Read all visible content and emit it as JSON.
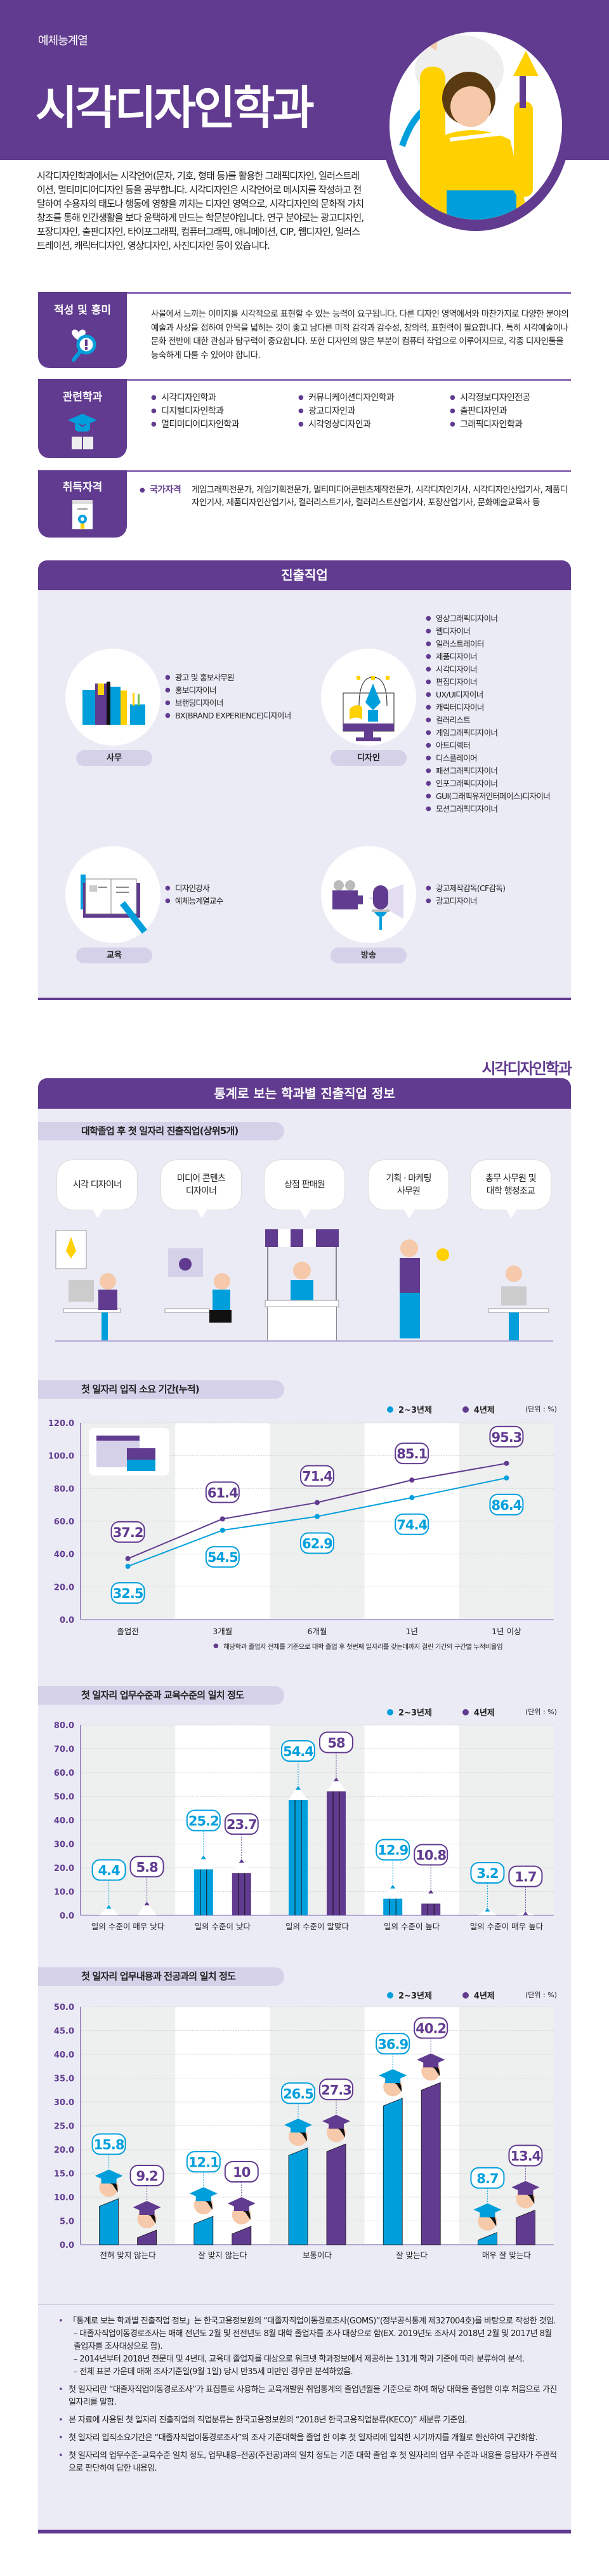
{
  "header": {
    "category": "예체능계열",
    "title": "시각디자인학과",
    "intro": "시각디자인학과에서는 시각언어(문자, 기호, 형태 등)를 활용한 그래픽디자인, 일러스트레이션, 멀티미디어디자인 등을 공부합니다. 시각디자인은 시각언어로 메시지를 작성하고 전달하여 수용자의 태도나 행동에 영향을 끼치는 디자인 영역으로, 시각디자인의 문화적 가치창조를 통해 인간생활을 보다 윤택하게 만드는 학문분야입니다. 연구 분야로는 광고디자인, 포장디자인, 출판디자인, 타이포그래픽, 컴퓨터그래픽, 애니메이션, CIP, 웹디자인, 일러스트레이션, 캐릭터디자인, 영상디자인, 사진디자인 등이 있습니다."
  },
  "aptitude": {
    "label": "적성 및 흥미",
    "icon": "heart-magnifier-icon",
    "text": "사물에서 느끼는 이미지를 시각적으로 표현할 수 있는 능력이 요구됩니다. 다른 디자인 영역에서와 마찬가지로 다양한 분야의 예술과 사상을 접하여 안목을 넓히는 것이 좋고 남다른 미적 감각과 감수성, 창의력, 표현력이 필요합니다. 특히 시각예술이나 문화 전반에 대한 관심과 탐구력이 중요합니다. 또한 디자인의 많은 부분이 컴퓨터 작업으로 이루어지므로, 각종 디자인툴을 능숙하게 다룰 수 있어야 합니다."
  },
  "related": {
    "label": "관련학과",
    "icon": "graduation-cap-book-icon",
    "columns": [
      [
        "시각디자인학과",
        "디지털디자인학과",
        "멀티미디어디자인학과"
      ],
      [
        "커뮤니케이션디자인학과",
        "광고디자인과",
        "시각영상디자인과"
      ],
      [
        "시각정보디자인전공",
        "출판디자인과",
        "그래픽디자인학과"
      ]
    ]
  },
  "certs": {
    "label": "취득자격",
    "icon": "certificate-icon",
    "type": "국가자격",
    "text": "게임그래픽전문가, 게임기획전문가, 멀티미디어콘텐츠제작전문가, 시각디자인기사, 시각디자인산업기사, 제품디자인기사, 제품디자인산업기사, 컬러리스트기사, 컬러리스트산업기사, 포장산업기사, 문화예술교육사 등"
  },
  "jobs": {
    "title": "진출직업",
    "groups": [
      {
        "label": "사무",
        "icon": "books-icon",
        "items": [
          "광고 및 홍보사무원",
          "홍보디자이너",
          "브랜딩디자이너",
          "BX(BRAND EXPERIENCE)디자이너"
        ]
      },
      {
        "label": "디자인",
        "icon": "pen-tool-monitor-icon",
        "items": [
          "영상그래픽디자이너",
          "웹디자이너",
          "일러스트레이터",
          "제품디자이너",
          "시각디자이너",
          "편집디자이너",
          "UX/UI디자이너",
          "캐릭터디자이너",
          "컬러리스트",
          "게임그래픽디자이너",
          "아트디렉터",
          "디스플레이어",
          "패션그래픽디자이너",
          "인포그래픽디자이너",
          "GUI(그래픽유저인터페이스)디자이너",
          "모션그래픽디자이너"
        ]
      },
      {
        "label": "교육",
        "icon": "open-book-pencil-icon",
        "items": [
          "디자인강사",
          "예체능계열교수"
        ]
      },
      {
        "label": "방송",
        "icon": "camera-microphone-icon",
        "items": [
          "광고제작감독(CF감독)",
          "광고디자이너"
        ]
      }
    ]
  },
  "stats": {
    "dept": "시각디자인학과",
    "title": "통계로 보는 학과별 진출직업 정보",
    "top5": {
      "title": "대학졸업 후 첫 일자리 진출직업(상위5개)",
      "items": [
        "시각 디자이너",
        "미디어 콘텐츠\n디자이너",
        "상점 판매원",
        "기획 · 마케팅\n사무원",
        "총무 사무원 및\n대학 행정조교"
      ]
    },
    "legend": {
      "s1": "2~3년제",
      "s2": "4년제",
      "unit": "(단위 : %)"
    },
    "colors": {
      "s1": "#009fdc",
      "s2": "#613b8f"
    }
  },
  "chart_data": [
    {
      "type": "line",
      "title": "첫 일자리 입직 소요 기간(누적)",
      "categories": [
        "졸업전",
        "3개월",
        "6개월",
        "1년",
        "1년 이상"
      ],
      "series": [
        {
          "name": "2~3년제",
          "values": [
            32.5,
            54.5,
            62.9,
            74.4,
            86.4
          ]
        },
        {
          "name": "4년제",
          "values": [
            37.2,
            61.4,
            71.4,
            85.1,
            95.3
          ]
        }
      ],
      "ylim": [
        0,
        120
      ],
      "yticks": [
        "0.0",
        "20.0",
        "40.0",
        "60.0",
        "80.0",
        "100.0",
        "120.0"
      ],
      "grid": true,
      "legend": "top-right",
      "note": "해당학과 졸업자 전체를 기준으로 대학 졸업 후 첫번째 일자리를 갖는데까지 걸린 기간의 구간별 누적비율임"
    },
    {
      "type": "bar",
      "title": "첫 일자리 업무수준과 교육수준의 일치 정도",
      "categories": [
        "일의 수준이 매우 낮다",
        "일의 수준이 낮다",
        "일의 수준이 알맞다",
        "일의 수준이 높다",
        "일의 수준이 매우 높다"
      ],
      "series": [
        {
          "name": "2~3년제",
          "values": [
            4.4,
            25.2,
            54.4,
            12.9,
            3.2
          ]
        },
        {
          "name": "4년제",
          "values": [
            5.8,
            23.7,
            58.0,
            10.8,
            1.7
          ]
        }
      ],
      "ylim": [
        0,
        80
      ],
      "yticks": [
        "0.0",
        "10.0",
        "20.0",
        "30.0",
        "40.0",
        "50.0",
        "60.0",
        "70.0",
        "80.0"
      ],
      "grid": true,
      "legend": "top-right"
    },
    {
      "type": "bar",
      "title": "첫 일자리 업무내용과 전공과의 일치 정도",
      "categories": [
        "전혀 맞지 않는다",
        "잘 맞지 않는다",
        "보통이다",
        "잘 맞는다",
        "매우 잘 맞는다"
      ],
      "series": [
        {
          "name": "2~3년제",
          "values": [
            15.8,
            12.1,
            26.5,
            36.9,
            8.7
          ]
        },
        {
          "name": "4년제",
          "values": [
            9.2,
            10.0,
            27.3,
            40.2,
            13.4
          ]
        }
      ],
      "ylim": [
        0,
        50
      ],
      "yticks": [
        "0.0",
        "5.0",
        "10.0",
        "15.0",
        "20.0",
        "25.0",
        "30.0",
        "35.0",
        "40.0",
        "45.0",
        "50.0"
      ],
      "grid": true,
      "legend": "top-right"
    }
  ],
  "notes": [
    {
      "text": "「통계로 보는 학과별 진출직업 정보」는 한국고용정보원의 “대졸자직업이동경로조사(GOMS)”(정부공식통계 제327004호)를 바탕으로 작성한 것임.",
      "subs": [
        "– 대졸자직업이동경로조사는 매해 전년도 2월 및 전전년도 8월 대학 졸업자를 조사 대상으로 함(EX. 2019년도 조사시 2018년 2월 및 2017년 8월 졸업자를 조사대상으로 함).",
        "– 2014년부터 2018년 전문대 및 4년대, 교육대 졸업자를 대상으로 워크넷 학과정보에서 제공하는 131개 학과 기준에 따라 분류하여 분석.",
        "– 전체 표본 가운데 매해 조사기준일(9월 1일) 당시 만35세 미만인 경우만 분석하였음."
      ]
    },
    {
      "text": "첫 일자리란 “대졸자직업이동경로조사”가 표집틀로 사용하는 교육개발원 취업통계의 졸업년월을 기준으로 하여 해당 대학을 졸업한 이후 처음으로 가진 일자리를 말함.",
      "subs": []
    },
    {
      "text": "본 자료에 사용된 첫 일자리 진출직업의 직업분류는 한국고용정보원의 “2018년 한국고용직업분류(KECO)” 세분류 기준임.",
      "subs": []
    },
    {
      "text": "첫 일자리 입직소요기간은 “대졸자직업이동경로조사”의 조사 기준대학을 졸업 한 이후 첫 일자리에 입직한 시기까지를 개월로 환산하여 구간화함.",
      "subs": []
    },
    {
      "text": "첫 일자리의 업무수준–교육수준 일치 정도, 업무내용–전공(주전공)과의 일치 정도는 기준 대학 졸업 후 첫 일자리의 업무 수준과 내용을 응답자가 주관적으로 판단하여 답한 내용임.",
      "subs": []
    }
  ]
}
